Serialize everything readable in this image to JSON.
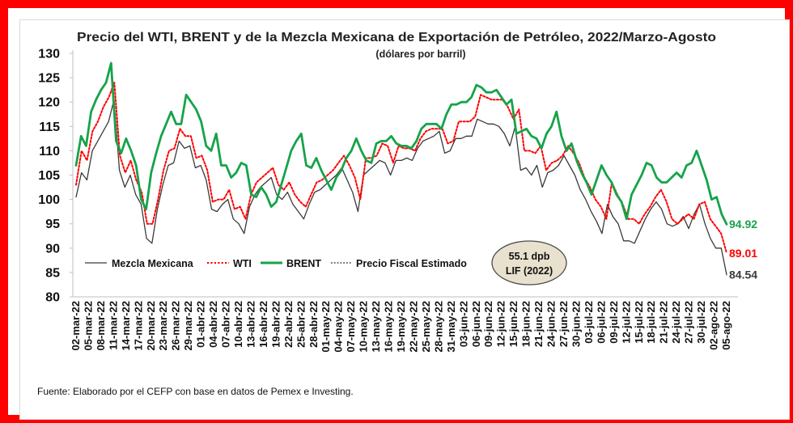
{
  "chart_data": {
    "type": "line",
    "title": "Precio del WTI, BRENT y de la Mezcla Mexicana de Exportación de Petróleo, 2022/Marzo-Agosto",
    "subtitle": "(dólares por barril)",
    "source": "Fuente: Elaborado por el CEFP con base en datos de Pemex e Investing.",
    "ylim": [
      80,
      130
    ],
    "yticks": [
      80,
      85,
      90,
      95,
      100,
      105,
      110,
      115,
      120,
      125,
      130
    ],
    "grid": false,
    "legend_position": "bottom-left",
    "x_tick_labels": [
      "02-mar-22",
      "05-mar-22",
      "08-mar-22",
      "11-mar-22",
      "14-mar-22",
      "17-mar-22",
      "20-mar-22",
      "23-mar-22",
      "26-mar-22",
      "29-mar-22",
      "01-abr-22",
      "04-abr-22",
      "07-abr-22",
      "10-abr-22",
      "13-abr-22",
      "16-abr-22",
      "19-abr-22",
      "22-abr-22",
      "25-abr-22",
      "28-abr-22",
      "01-may-22",
      "04-may-22",
      "07-may-22",
      "10-may-22",
      "13-may-22",
      "16-may-22",
      "19-may-22",
      "22-may-22",
      "25-may-22",
      "28-may-22",
      "31-may-22",
      "03-jun-22",
      "06-jun-22",
      "09-jun-22",
      "12-jun-22",
      "15-jun-22",
      "18-jun-22",
      "21-jun-22",
      "24-jun-22",
      "27-jun-22",
      "30-jun-22",
      "03-jul-22",
      "06-jul-22",
      "09-jul-22",
      "12-jul-22",
      "15-jul-22",
      "18-jul-22",
      "21-jul-22",
      "24-jul-22",
      "27-jul-22",
      "30-jul-22",
      "02-ago-22",
      "05-ago-22"
    ],
    "series": [
      {
        "name": "Mezcla Mexicana",
        "color": "#3a3a3a",
        "style": "solid-thin",
        "values": [
          100.5,
          105.5,
          104,
          110,
          112,
          114,
          116,
          120.5,
          106,
          102.5,
          105,
          101,
          99,
          92,
          91,
          98,
          103,
          107,
          107.5,
          112,
          110.5,
          111,
          106.5,
          107,
          104,
          98,
          97.5,
          99,
          100,
          96,
          95,
          93,
          98.5,
          101,
          102.5,
          103.5,
          104.5,
          101,
          100,
          101.5,
          99,
          97.5,
          96,
          99,
          101.5,
          102,
          103,
          104,
          105,
          106.5,
          104,
          101.5,
          97.5,
          105,
          106,
          107,
          108,
          107.5,
          105,
          108,
          108,
          108.5,
          108,
          110.5,
          112,
          112.5,
          113,
          114,
          109.5,
          110,
          112.5,
          112.5,
          113,
          113,
          116.5,
          116,
          115.5,
          115.5,
          115,
          113.5,
          111,
          115,
          106,
          106.5,
          105,
          107,
          102.5,
          105.5,
          106,
          107,
          109,
          107,
          105,
          102,
          100,
          97.5,
          95.5,
          93,
          99,
          96.5,
          95,
          91.5,
          91.5,
          91,
          93.5,
          96,
          98,
          99.5,
          98,
          95,
          94.5,
          95,
          96.5,
          94,
          97,
          99,
          95,
          92,
          90,
          90,
          84.54
        ],
        "end_label": "84.54"
      },
      {
        "name": "WTI",
        "color": "#ff0000",
        "style": "dotted",
        "values": [
          103,
          110,
          108,
          114,
          116,
          119,
          121,
          124,
          109,
          105.5,
          108,
          104,
          101.5,
          95,
          95,
          100,
          106,
          110,
          110.5,
          114.5,
          113,
          113,
          108.5,
          109,
          106,
          99.5,
          100,
          100,
          102,
          98,
          98.5,
          96,
          101,
          103.5,
          104.5,
          105.5,
          106.5,
          103,
          102,
          103.5,
          101,
          99.5,
          98.5,
          101,
          103.5,
          104,
          105,
          106,
          107.5,
          109,
          107,
          104.5,
          100,
          108.5,
          108.5,
          109,
          111.5,
          111,
          107.5,
          111,
          110.5,
          110.5,
          110,
          112.5,
          114,
          114.5,
          114.5,
          114.5,
          111.5,
          112,
          116,
          116,
          116,
          117,
          121.5,
          121,
          120.5,
          120.5,
          120.5,
          119,
          116.5,
          118.5,
          110,
          110,
          109.5,
          111,
          106,
          107.5,
          108,
          109,
          111,
          109.5,
          107.5,
          104.5,
          102.5,
          100,
          98.5,
          96,
          103.5,
          101,
          99,
          96,
          96,
          95,
          97,
          98.5,
          100.5,
          102,
          99.5,
          96,
          95,
          96,
          97,
          96,
          99,
          99.5,
          96,
          94.5,
          93,
          89.01
        ],
        "end_label": "89.01"
      },
      {
        "name": "BRENT",
        "color": "#16a34a",
        "style": "solid-thick",
        "values": [
          107,
          113,
          111,
          118,
          120.5,
          122.5,
          124,
          128,
          112,
          109.5,
          112.5,
          110,
          107,
          100,
          98,
          105.5,
          109.5,
          113,
          115.5,
          118,
          115.5,
          115.5,
          121.5,
          120,
          118.5,
          116,
          111,
          110,
          113.5,
          107,
          107,
          104.5,
          105.5,
          107.5,
          107,
          101,
          100.5,
          102.5,
          101,
          98.5,
          99.5,
          103,
          106.5,
          110,
          112,
          113.5,
          107,
          106.5,
          108.5,
          106,
          104,
          102,
          104.5,
          106,
          108.5,
          110,
          112.5,
          110,
          108,
          107.5,
          111.5,
          112,
          112,
          113,
          111.5,
          111,
          111,
          110.5,
          112,
          114.5,
          115.5,
          115.5,
          115.5,
          114.5,
          117.5,
          119.5,
          119.5,
          120,
          120,
          121,
          123.5,
          123,
          122,
          122,
          122.5,
          121,
          119.5,
          120.5,
          113.5,
          114,
          114.5,
          113,
          112.5,
          110.5,
          113.5,
          115,
          118,
          113,
          110,
          111.5,
          108,
          105.5,
          103.5,
          101,
          104,
          107,
          105,
          103.5,
          101,
          99.5,
          96,
          101,
          103,
          105,
          107.5,
          107,
          104.5,
          103.5,
          103.5,
          104.5,
          105.5,
          104.5,
          107,
          107.5,
          110,
          107,
          104,
          100,
          100.5,
          97,
          94.92
        ],
        "end_label": "94.92"
      },
      {
        "name": "Precio Fiscal Estimado",
        "color": "#444444",
        "style": "dotted",
        "values": [],
        "end_label": ""
      }
    ],
    "annotation": {
      "line1": "55.1 dpb",
      "line2": "LIF (2022)"
    }
  }
}
